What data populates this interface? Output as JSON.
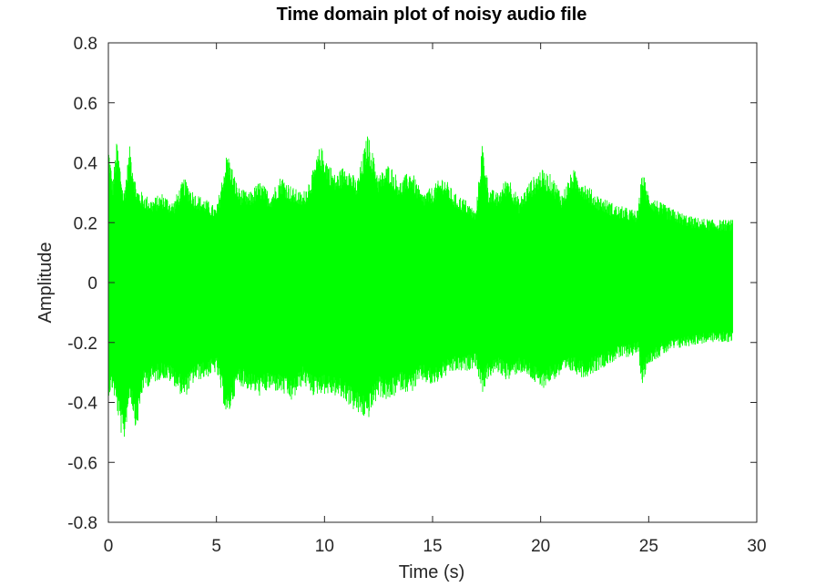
{
  "chart_data": {
    "type": "line",
    "title": "Time domain plot of noisy audio file",
    "xlabel": "Time (s)",
    "ylabel": "Amplitude",
    "xlim": [
      0,
      30
    ],
    "ylim": [
      -0.8,
      0.8
    ],
    "xticks": [
      0,
      5,
      10,
      15,
      20,
      25,
      30
    ],
    "xtick_labels": [
      "0",
      "5",
      "10",
      "15",
      "20",
      "25",
      "30"
    ],
    "yticks": [
      0.8,
      0.6,
      0.4,
      0.2,
      0,
      -0.2,
      -0.4,
      -0.6,
      -0.8
    ],
    "ytick_labels": [
      "0.8",
      "0.6",
      "0.4",
      "0.2",
      "0",
      "-0.2",
      "-0.4",
      "-0.6",
      "-0.8"
    ],
    "grid": false,
    "series": [
      {
        "color": "#00ff00",
        "duration_s": 28.9,
        "envelope": {
          "t": [
            0,
            0.2,
            0.4,
            0.7,
            1.0,
            1.3,
            1.6,
            2.0,
            2.5,
            3.0,
            3.5,
            4.0,
            4.5,
            5.0,
            5.5,
            6.0,
            6.5,
            7.0,
            7.5,
            8.0,
            8.5,
            9.0,
            9.5,
            9.8,
            10.5,
            11.0,
            11.5,
            12.0,
            12.5,
            13.0,
            13.5,
            14.0,
            14.5,
            15.0,
            15.5,
            16.0,
            16.5,
            17.0,
            17.3,
            17.6,
            18.0,
            18.5,
            19.0,
            19.5,
            20.0,
            20.5,
            21.0,
            21.5,
            22.0,
            22.5,
            23.0,
            23.5,
            24.0,
            24.5,
            24.7,
            25.0,
            25.5,
            26.0,
            27.0,
            28.0,
            28.9
          ],
          "upper": [
            0.47,
            0.34,
            0.48,
            0.3,
            0.46,
            0.32,
            0.3,
            0.28,
            0.3,
            0.27,
            0.35,
            0.3,
            0.28,
            0.25,
            0.44,
            0.32,
            0.3,
            0.34,
            0.3,
            0.36,
            0.32,
            0.3,
            0.38,
            0.46,
            0.36,
            0.4,
            0.34,
            0.5,
            0.36,
            0.4,
            0.34,
            0.38,
            0.3,
            0.32,
            0.36,
            0.3,
            0.28,
            0.24,
            0.47,
            0.32,
            0.3,
            0.36,
            0.28,
            0.34,
            0.38,
            0.36,
            0.3,
            0.38,
            0.34,
            0.3,
            0.28,
            0.26,
            0.25,
            0.24,
            0.38,
            0.3,
            0.27,
            0.25,
            0.22,
            0.21,
            0.21
          ],
          "lower": [
            -0.38,
            -0.36,
            -0.43,
            -0.55,
            -0.38,
            -0.5,
            -0.36,
            -0.34,
            -0.32,
            -0.34,
            -0.39,
            -0.33,
            -0.32,
            -0.3,
            -0.46,
            -0.34,
            -0.36,
            -0.38,
            -0.36,
            -0.37,
            -0.4,
            -0.34,
            -0.38,
            -0.37,
            -0.38,
            -0.4,
            -0.44,
            -0.46,
            -0.38,
            -0.4,
            -0.36,
            -0.37,
            -0.33,
            -0.35,
            -0.32,
            -0.3,
            -0.3,
            -0.28,
            -0.37,
            -0.32,
            -0.3,
            -0.33,
            -0.3,
            -0.32,
            -0.36,
            -0.33,
            -0.31,
            -0.3,
            -0.32,
            -0.3,
            -0.28,
            -0.26,
            -0.25,
            -0.24,
            -0.34,
            -0.27,
            -0.25,
            -0.23,
            -0.21,
            -0.2,
            -0.2
          ]
        }
      }
    ]
  }
}
